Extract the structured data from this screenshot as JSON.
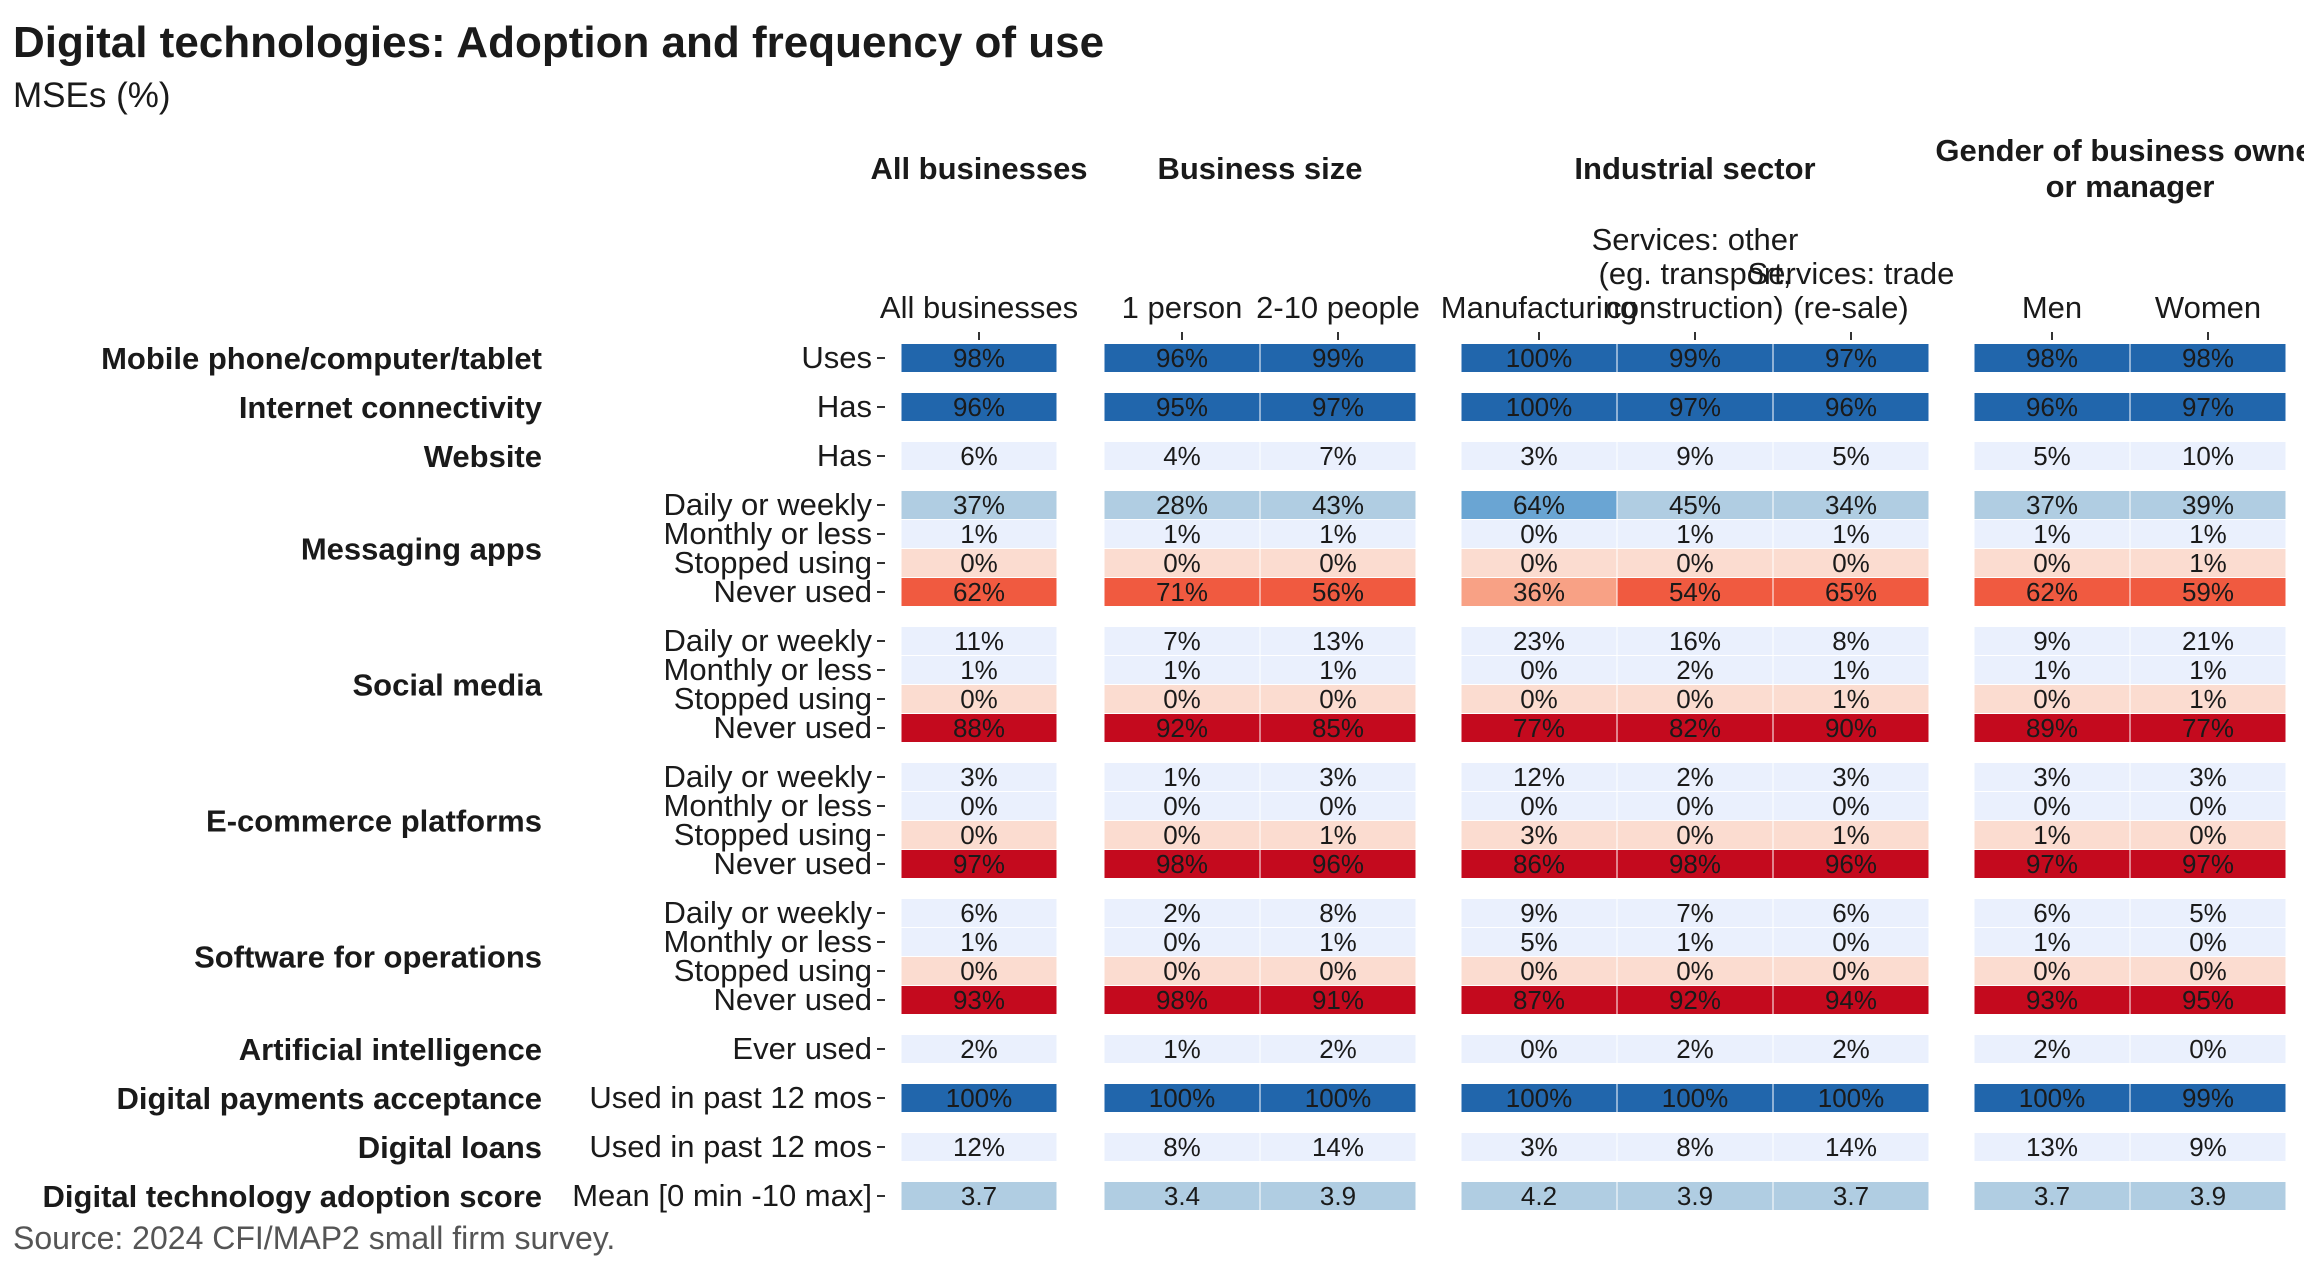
{
  "chart_data": {
    "type": "heatmap",
    "title": "Digital technologies: Adoption and frequency of use",
    "subtitle": "MSEs (%)",
    "source": "Source: 2024 CFI/MAP2 small firm survey.",
    "groups": [
      {
        "label": "All businesses",
        "columns": [
          "All businesses"
        ]
      },
      {
        "label": "Business size",
        "columns": [
          "1 person",
          "2-10 people"
        ]
      },
      {
        "label": "Industrial sector",
        "columns": [
          "Manufacturing",
          "Services: other\n(eg. transport,\nconstruction)",
          "Services: trade\n(re-sale)"
        ]
      },
      {
        "label": "Gender of business owner\nor manager",
        "columns": [
          "Men",
          "Women"
        ]
      }
    ],
    "colors": {
      "dark_blue": "#2166ac",
      "mid_blue": "#6aa5d3",
      "light_blue": "#b0cde2",
      "pale_blue": "#eaf0fd",
      "pale_red": "#fbdcd0",
      "salmon": "#f8a185",
      "red_orange": "#f05a40",
      "dark_red": "#c40a1e"
    },
    "sections": [
      {
        "name": "Mobile phone/computer/tablet",
        "rows": [
          {
            "label": "Uses",
            "values": [
              "98%",
              "96%",
              "99%",
              "100%",
              "99%",
              "97%",
              "98%",
              "98%"
            ],
            "colors": [
              "dark_blue",
              "dark_blue",
              "dark_blue",
              "dark_blue",
              "dark_blue",
              "dark_blue",
              "dark_blue",
              "dark_blue"
            ]
          }
        ]
      },
      {
        "name": "Internet connectivity",
        "rows": [
          {
            "label": "Has",
            "values": [
              "96%",
              "95%",
              "97%",
              "100%",
              "97%",
              "96%",
              "96%",
              "97%"
            ],
            "colors": [
              "dark_blue",
              "dark_blue",
              "dark_blue",
              "dark_blue",
              "dark_blue",
              "dark_blue",
              "dark_blue",
              "dark_blue"
            ]
          }
        ]
      },
      {
        "name": "Website",
        "rows": [
          {
            "label": "Has",
            "values": [
              "6%",
              "4%",
              "7%",
              "3%",
              "9%",
              "5%",
              "5%",
              "10%"
            ],
            "colors": [
              "pale_blue",
              "pale_blue",
              "pale_blue",
              "pale_blue",
              "pale_blue",
              "pale_blue",
              "pale_blue",
              "pale_blue"
            ]
          }
        ]
      },
      {
        "name": "Messaging apps",
        "rows": [
          {
            "label": "Daily or weekly",
            "values": [
              "37%",
              "28%",
              "43%",
              "64%",
              "45%",
              "34%",
              "37%",
              "39%"
            ],
            "colors": [
              "light_blue",
              "light_blue",
              "light_blue",
              "mid_blue",
              "light_blue",
              "light_blue",
              "light_blue",
              "light_blue"
            ]
          },
          {
            "label": "Monthly or less",
            "values": [
              "1%",
              "1%",
              "1%",
              "0%",
              "1%",
              "1%",
              "1%",
              "1%"
            ],
            "colors": [
              "pale_blue",
              "pale_blue",
              "pale_blue",
              "pale_blue",
              "pale_blue",
              "pale_blue",
              "pale_blue",
              "pale_blue"
            ]
          },
          {
            "label": "Stopped using",
            "values": [
              "0%",
              "0%",
              "0%",
              "0%",
              "0%",
              "0%",
              "0%",
              "1%"
            ],
            "colors": [
              "pale_red",
              "pale_red",
              "pale_red",
              "pale_red",
              "pale_red",
              "pale_red",
              "pale_red",
              "pale_red"
            ]
          },
          {
            "label": "Never used",
            "values": [
              "62%",
              "71%",
              "56%",
              "36%",
              "54%",
              "65%",
              "62%",
              "59%"
            ],
            "colors": [
              "red_orange",
              "red_orange",
              "red_orange",
              "salmon",
              "red_orange",
              "red_orange",
              "red_orange",
              "red_orange"
            ]
          }
        ]
      },
      {
        "name": "Social media",
        "rows": [
          {
            "label": "Daily or weekly",
            "values": [
              "11%",
              "7%",
              "13%",
              "23%",
              "16%",
              "8%",
              "9%",
              "21%"
            ],
            "colors": [
              "pale_blue",
              "pale_blue",
              "pale_blue",
              "pale_blue",
              "pale_blue",
              "pale_blue",
              "pale_blue",
              "pale_blue"
            ]
          },
          {
            "label": "Monthly or less",
            "values": [
              "1%",
              "1%",
              "1%",
              "0%",
              "2%",
              "1%",
              "1%",
              "1%"
            ],
            "colors": [
              "pale_blue",
              "pale_blue",
              "pale_blue",
              "pale_blue",
              "pale_blue",
              "pale_blue",
              "pale_blue",
              "pale_blue"
            ]
          },
          {
            "label": "Stopped using",
            "values": [
              "0%",
              "0%",
              "0%",
              "0%",
              "0%",
              "1%",
              "0%",
              "1%"
            ],
            "colors": [
              "pale_red",
              "pale_red",
              "pale_red",
              "pale_red",
              "pale_red",
              "pale_red",
              "pale_red",
              "pale_red"
            ]
          },
          {
            "label": "Never used",
            "values": [
              "88%",
              "92%",
              "85%",
              "77%",
              "82%",
              "90%",
              "89%",
              "77%"
            ],
            "colors": [
              "dark_red",
              "dark_red",
              "dark_red",
              "dark_red",
              "dark_red",
              "dark_red",
              "dark_red",
              "dark_red"
            ]
          }
        ]
      },
      {
        "name": "E-commerce platforms",
        "rows": [
          {
            "label": "Daily or weekly",
            "values": [
              "3%",
              "1%",
              "3%",
              "12%",
              "2%",
              "3%",
              "3%",
              "3%"
            ],
            "colors": [
              "pale_blue",
              "pale_blue",
              "pale_blue",
              "pale_blue",
              "pale_blue",
              "pale_blue",
              "pale_blue",
              "pale_blue"
            ]
          },
          {
            "label": "Monthly or less",
            "values": [
              "0%",
              "0%",
              "0%",
              "0%",
              "0%",
              "0%",
              "0%",
              "0%"
            ],
            "colors": [
              "pale_blue",
              "pale_blue",
              "pale_blue",
              "pale_blue",
              "pale_blue",
              "pale_blue",
              "pale_blue",
              "pale_blue"
            ]
          },
          {
            "label": "Stopped using",
            "values": [
              "0%",
              "0%",
              "1%",
              "3%",
              "0%",
              "1%",
              "1%",
              "0%"
            ],
            "colors": [
              "pale_red",
              "pale_red",
              "pale_red",
              "pale_red",
              "pale_red",
              "pale_red",
              "pale_red",
              "pale_red"
            ]
          },
          {
            "label": "Never used",
            "values": [
              "97%",
              "98%",
              "96%",
              "86%",
              "98%",
              "96%",
              "97%",
              "97%"
            ],
            "colors": [
              "dark_red",
              "dark_red",
              "dark_red",
              "dark_red",
              "dark_red",
              "dark_red",
              "dark_red",
              "dark_red"
            ]
          }
        ]
      },
      {
        "name": "Software for operations",
        "rows": [
          {
            "label": "Daily or weekly",
            "values": [
              "6%",
              "2%",
              "8%",
              "9%",
              "7%",
              "6%",
              "6%",
              "5%"
            ],
            "colors": [
              "pale_blue",
              "pale_blue",
              "pale_blue",
              "pale_blue",
              "pale_blue",
              "pale_blue",
              "pale_blue",
              "pale_blue"
            ]
          },
          {
            "label": "Monthly or less",
            "values": [
              "1%",
              "0%",
              "1%",
              "5%",
              "1%",
              "0%",
              "1%",
              "0%"
            ],
            "colors": [
              "pale_blue",
              "pale_blue",
              "pale_blue",
              "pale_blue",
              "pale_blue",
              "pale_blue",
              "pale_blue",
              "pale_blue"
            ]
          },
          {
            "label": "Stopped using",
            "values": [
              "0%",
              "0%",
              "0%",
              "0%",
              "0%",
              "0%",
              "0%",
              "0%"
            ],
            "colors": [
              "pale_red",
              "pale_red",
              "pale_red",
              "pale_red",
              "pale_red",
              "pale_red",
              "pale_red",
              "pale_red"
            ]
          },
          {
            "label": "Never used",
            "values": [
              "93%",
              "98%",
              "91%",
              "87%",
              "92%",
              "94%",
              "93%",
              "95%"
            ],
            "colors": [
              "dark_red",
              "dark_red",
              "dark_red",
              "dark_red",
              "dark_red",
              "dark_red",
              "dark_red",
              "dark_red"
            ]
          }
        ]
      },
      {
        "name": "Artificial intelligence",
        "rows": [
          {
            "label": "Ever used",
            "values": [
              "2%",
              "1%",
              "2%",
              "0%",
              "2%",
              "2%",
              "2%",
              "0%"
            ],
            "colors": [
              "pale_blue",
              "pale_blue",
              "pale_blue",
              "pale_blue",
              "pale_blue",
              "pale_blue",
              "pale_blue",
              "pale_blue"
            ]
          }
        ]
      },
      {
        "name": "Digital payments acceptance",
        "rows": [
          {
            "label": "Used in past 12 mos",
            "values": [
              "100%",
              "100%",
              "100%",
              "100%",
              "100%",
              "100%",
              "100%",
              "99%"
            ],
            "colors": [
              "dark_blue",
              "dark_blue",
              "dark_blue",
              "dark_blue",
              "dark_blue",
              "dark_blue",
              "dark_blue",
              "dark_blue"
            ]
          }
        ]
      },
      {
        "name": "Digital loans",
        "rows": [
          {
            "label": "Used in past 12 mos",
            "values": [
              "12%",
              "8%",
              "14%",
              "3%",
              "8%",
              "14%",
              "13%",
              "9%"
            ],
            "colors": [
              "pale_blue",
              "pale_blue",
              "pale_blue",
              "pale_blue",
              "pale_blue",
              "pale_blue",
              "pale_blue",
              "pale_blue"
            ]
          }
        ]
      },
      {
        "name": "Digital technology adoption score",
        "rows": [
          {
            "label": "Mean [0 min -10 max]",
            "values": [
              "3.7",
              "3.4",
              "3.9",
              "4.2",
              "3.9",
              "3.7",
              "3.7",
              "3.9"
            ],
            "colors": [
              "light_blue",
              "light_blue",
              "light_blue",
              "light_blue",
              "light_blue",
              "light_blue",
              "light_blue",
              "light_blue"
            ]
          }
        ]
      }
    ]
  }
}
